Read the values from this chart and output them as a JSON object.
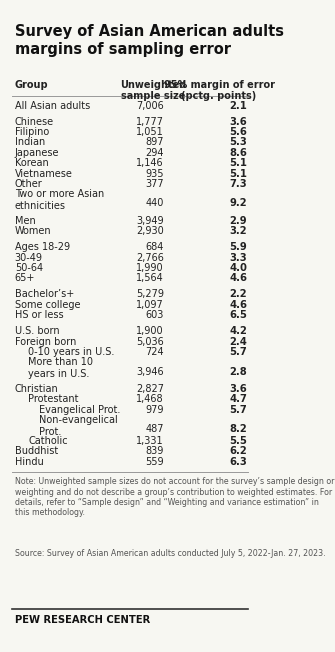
{
  "title": "Survey of Asian American adults\nmargins of sampling error",
  "col_header_group": "Group",
  "col_header_sample": "Unweighted\nsample size",
  "col_header_error": "95% margin of error\n(pctg. points)",
  "rows": [
    {
      "group": "All Asian adults",
      "indent": 0,
      "sample": "7,006",
      "error": "2.1",
      "spacer_before": false
    },
    {
      "group": "Chinese",
      "indent": 0,
      "sample": "1,777",
      "error": "3.6",
      "spacer_before": true
    },
    {
      "group": "Filipino",
      "indent": 0,
      "sample": "1,051",
      "error": "5.6",
      "spacer_before": false
    },
    {
      "group": "Indian",
      "indent": 0,
      "sample": "897",
      "error": "5.3",
      "spacer_before": false
    },
    {
      "group": "Japanese",
      "indent": 0,
      "sample": "294",
      "error": "8.6",
      "spacer_before": false
    },
    {
      "group": "Korean",
      "indent": 0,
      "sample": "1,146",
      "error": "5.1",
      "spacer_before": false
    },
    {
      "group": "Vietnamese",
      "indent": 0,
      "sample": "935",
      "error": "5.1",
      "spacer_before": false
    },
    {
      "group": "Other",
      "indent": 0,
      "sample": "377",
      "error": "7.3",
      "spacer_before": false
    },
    {
      "group": "Two or more Asian\nethnicities",
      "indent": 0,
      "sample": "440",
      "error": "9.2",
      "spacer_before": false
    },
    {
      "group": "Men",
      "indent": 0,
      "sample": "3,949",
      "error": "2.9",
      "spacer_before": true
    },
    {
      "group": "Women",
      "indent": 0,
      "sample": "2,930",
      "error": "3.2",
      "spacer_before": false
    },
    {
      "group": "Ages 18-29",
      "indent": 0,
      "sample": "684",
      "error": "5.9",
      "spacer_before": true
    },
    {
      "group": "30-49",
      "indent": 0,
      "sample": "2,766",
      "error": "3.3",
      "spacer_before": false
    },
    {
      "group": "50-64",
      "indent": 0,
      "sample": "1,990",
      "error": "4.0",
      "spacer_before": false
    },
    {
      "group": "65+",
      "indent": 0,
      "sample": "1,564",
      "error": "4.6",
      "spacer_before": false
    },
    {
      "group": "Bachelor’s+",
      "indent": 0,
      "sample": "5,279",
      "error": "2.2",
      "spacer_before": true
    },
    {
      "group": "Some college",
      "indent": 0,
      "sample": "1,097",
      "error": "4.6",
      "spacer_before": false
    },
    {
      "group": "HS or less",
      "indent": 0,
      "sample": "603",
      "error": "6.5",
      "spacer_before": false
    },
    {
      "group": "U.S. born",
      "indent": 0,
      "sample": "1,900",
      "error": "4.2",
      "spacer_before": true
    },
    {
      "group": "Foreign born",
      "indent": 0,
      "sample": "5,036",
      "error": "2.4",
      "spacer_before": false
    },
    {
      "group": "0-10 years in U.S.",
      "indent": 1,
      "sample": "724",
      "error": "5.7",
      "spacer_before": false
    },
    {
      "group": "More than 10\nyears in U.S.",
      "indent": 1,
      "sample": "3,946",
      "error": "2.8",
      "spacer_before": false
    },
    {
      "group": "Christian",
      "indent": 0,
      "sample": "2,827",
      "error": "3.6",
      "spacer_before": true
    },
    {
      "group": "Protestant",
      "indent": 1,
      "sample": "1,468",
      "error": "4.7",
      "spacer_before": false
    },
    {
      "group": "Evangelical Prot.",
      "indent": 2,
      "sample": "979",
      "error": "5.7",
      "spacer_before": false
    },
    {
      "group": "Non-evangelical\nProt.",
      "indent": 2,
      "sample": "487",
      "error": "8.2",
      "spacer_before": false
    },
    {
      "group": "Catholic",
      "indent": 1,
      "sample": "1,331",
      "error": "5.5",
      "spacer_before": false
    },
    {
      "group": "Buddhist",
      "indent": 0,
      "sample": "839",
      "error": "6.2",
      "spacer_before": false
    },
    {
      "group": "Hindu",
      "indent": 0,
      "sample": "559",
      "error": "6.3",
      "spacer_before": false
    }
  ],
  "note": "Note: Unweighted sample sizes do not account for the survey’s sample design or weighting and do not describe a group’s contribution to weighted estimates. For details, refer to “Sample design” and “Weighting and variance estimation” in this methodology.",
  "source": "Source: Survey of Asian American adults conducted July 5, 2022-Jan. 27, 2023.",
  "footer": "PEW RESEARCH CENTER",
  "bg_color": "#f7f7f2",
  "text_color": "#222222",
  "title_color": "#111111",
  "header_color": "#222222",
  "note_color": "#555555",
  "footer_color": "#111111",
  "line_color": "#999999",
  "footer_line_color": "#333333"
}
